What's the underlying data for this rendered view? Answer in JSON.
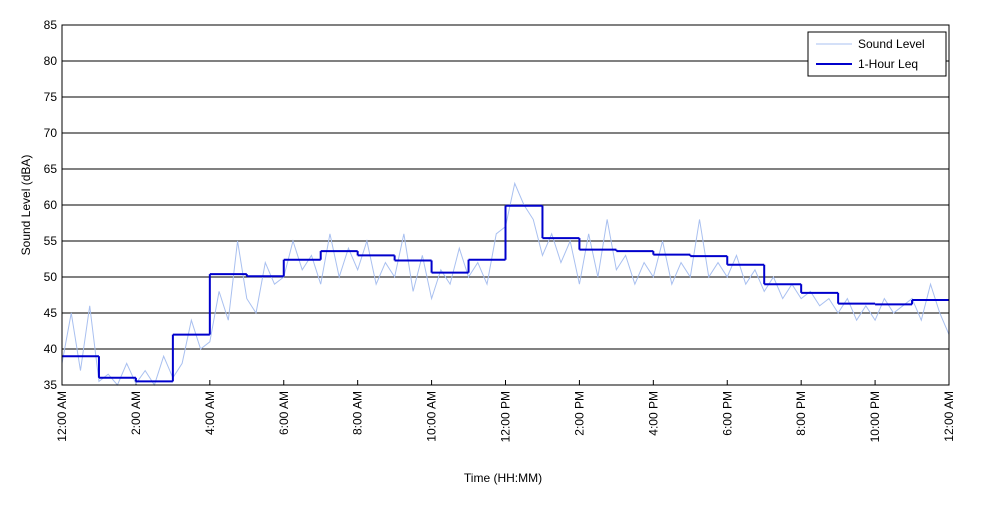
{
  "chart_data": {
    "type": "line",
    "xlabel": "Time (HH:MM)",
    "ylabel": "Sound Level (dBA)",
    "xlim": [
      0,
      24
    ],
    "xticks": [
      {
        "value": 0,
        "label": "12:00 AM"
      },
      {
        "value": 2,
        "label": "2:00 AM"
      },
      {
        "value": 4,
        "label": "4:00 AM"
      },
      {
        "value": 6,
        "label": "6:00 AM"
      },
      {
        "value": 8,
        "label": "8:00 AM"
      },
      {
        "value": 10,
        "label": "10:00 AM"
      },
      {
        "value": 12,
        "label": "12:00 PM"
      },
      {
        "value": 14,
        "label": "2:00 PM"
      },
      {
        "value": 16,
        "label": "4:00 PM"
      },
      {
        "value": 18,
        "label": "6:00 PM"
      },
      {
        "value": 20,
        "label": "8:00 PM"
      },
      {
        "value": 22,
        "label": "10:00 PM"
      },
      {
        "value": 24,
        "label": "12:00 AM"
      }
    ],
    "ylim": [
      35,
      85
    ],
    "yticks": [
      35,
      40,
      45,
      50,
      55,
      60,
      65,
      70,
      75,
      80,
      85
    ],
    "grid": true,
    "legend": "upper right",
    "series": [
      {
        "name": "Sound Level",
        "color": "#a9c0f0",
        "x": [
          0,
          0.25,
          0.5,
          0.75,
          1,
          1.25,
          1.5,
          1.75,
          2,
          2.25,
          2.5,
          2.75,
          3,
          3.25,
          3.5,
          3.75,
          4,
          4.25,
          4.5,
          4.75,
          5,
          5.25,
          5.5,
          5.75,
          6,
          6.25,
          6.5,
          6.75,
          7,
          7.25,
          7.5,
          7.75,
          8,
          8.25,
          8.5,
          8.75,
          9,
          9.25,
          9.5,
          9.75,
          10,
          10.25,
          10.5,
          10.75,
          11,
          11.25,
          11.5,
          11.75,
          12,
          12.25,
          12.5,
          12.75,
          13,
          13.25,
          13.5,
          13.75,
          14,
          14.25,
          14.5,
          14.75,
          15,
          15.25,
          15.5,
          15.75,
          16,
          16.25,
          16.5,
          16.75,
          17,
          17.25,
          17.5,
          17.75,
          18,
          18.25,
          18.5,
          18.75,
          19,
          19.25,
          19.5,
          19.75,
          20,
          20.25,
          20.5,
          20.75,
          21,
          21.25,
          21.5,
          21.75,
          22,
          22.25,
          22.5,
          22.75,
          23,
          23.25,
          23.5,
          23.75,
          24
        ],
        "values": [
          38,
          45,
          37,
          46,
          35.5,
          36.5,
          35,
          38,
          35.2,
          37,
          35,
          39,
          36,
          38,
          44,
          40,
          41,
          48,
          44,
          55,
          47,
          45,
          52,
          49,
          50,
          55,
          51,
          53,
          49,
          56,
          50,
          54,
          51,
          55,
          49,
          52,
          50,
          56,
          48,
          53,
          47,
          51,
          49,
          54,
          50,
          52,
          49,
          56,
          57,
          63,
          60,
          58,
          53,
          56,
          52,
          55,
          49,
          56,
          50,
          58,
          51,
          53,
          49,
          52,
          50,
          55,
          49,
          52,
          50,
          58,
          50,
          52,
          50,
          53,
          49,
          51,
          48,
          50,
          47,
          49,
          47,
          48,
          46,
          47,
          45,
          47,
          44,
          46,
          44,
          47,
          45,
          46,
          47,
          44,
          49,
          45,
          42
        ]
      },
      {
        "name": "1-Hour Leq",
        "color": "#0000cc",
        "step": "post",
        "x": [
          0,
          1,
          2,
          3,
          4,
          5,
          6,
          7,
          8,
          9,
          10,
          11,
          12,
          13,
          14,
          15,
          16,
          17,
          18,
          19,
          20,
          21,
          22,
          23
        ],
        "values": [
          39,
          36,
          35.5,
          42,
          50.4,
          50.1,
          52.4,
          53.6,
          53,
          52.3,
          50.6,
          52.4,
          59.9,
          55.4,
          53.8,
          53.6,
          53.1,
          52.9,
          51.7,
          49,
          47.8,
          46.3,
          46.2,
          46.8
        ]
      }
    ]
  }
}
